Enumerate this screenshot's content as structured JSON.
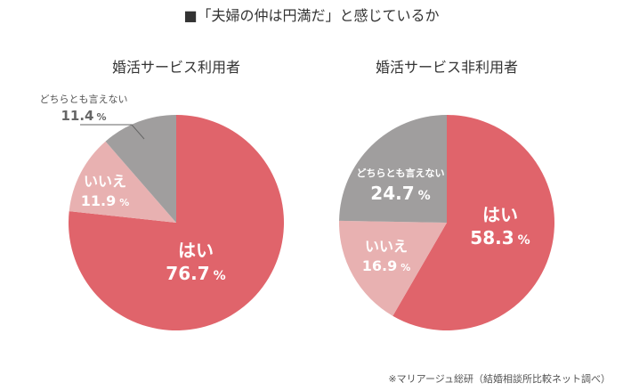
{
  "title": "■「夫婦の仲は円満だ」と感じているか",
  "source": "※マリアージュ総研（結婚相談所比較ネット調べ）",
  "colors": {
    "yes": "#e0646b",
    "no": "#e8b1b1",
    "neutral": "#a09e9e"
  },
  "chart_data": [
    {
      "type": "pie",
      "title": "婚活サービス利用者",
      "slices": [
        {
          "label": "はい",
          "value": 76.7,
          "display": "76.7",
          "color": "#e0646b"
        },
        {
          "label": "いいえ",
          "value": 11.9,
          "display": "11.9",
          "color": "#e8b1b1"
        },
        {
          "label": "どちらとも言えない",
          "value": 11.4,
          "display": "11.4",
          "color": "#a09e9e"
        }
      ],
      "unit": "%"
    },
    {
      "type": "pie",
      "title": "婚活サービス非利用者",
      "slices": [
        {
          "label": "はい",
          "value": 58.3,
          "display": "58.3",
          "color": "#e0646b"
        },
        {
          "label": "いいえ",
          "value": 16.9,
          "display": "16.9",
          "color": "#e8b1b1"
        },
        {
          "label": "どちらとも言えない",
          "value": 24.7,
          "display": "24.7",
          "color": "#a09e9e"
        }
      ],
      "unit": "%"
    }
  ]
}
